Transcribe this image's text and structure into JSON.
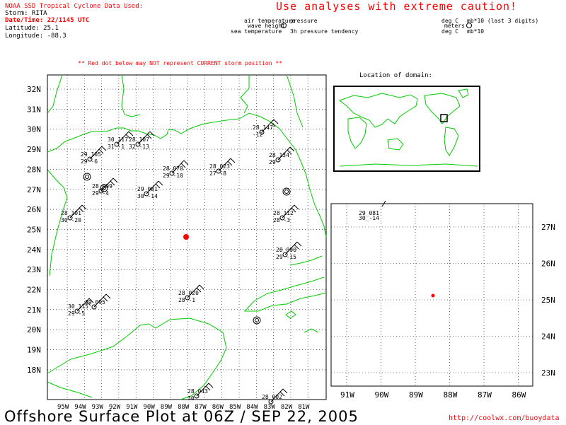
{
  "header": {
    "source_label": "NOAA SSD Tropical Cyclone Data Used:",
    "storm": "Storm: RITA",
    "datetime": "Date/Time: 22/1145 UTC",
    "latitude": "Latitude: 25.1",
    "longitude": "Longitude: -88.3",
    "caution": "Use analyses with extreme caution!",
    "warning": "** Red dot below may NOT represent CURRENT storm position **"
  },
  "legend": {
    "air_temperature": "air temperature",
    "pressure": "pressure",
    "wave_height": "wave height",
    "sea_temperature": "sea temperature",
    "pressure_tendency": "3h pressure tendency",
    "deg_c_1": "deg C",
    "mb_note": "mb*10 (last 3 digits)",
    "meters": "meters",
    "deg_c_2": "deg C",
    "mb_note_2": "mb*10"
  },
  "inset_title": "Location of domain:",
  "main_map": {
    "lat_labels": [
      "32N",
      "31N",
      "30N",
      "29N",
      "28N",
      "27N",
      "26N",
      "25N",
      "24N",
      "23N",
      "22N",
      "21N",
      "20N",
      "19N",
      "18N"
    ],
    "lon_labels": [
      "95W",
      "94W",
      "93W",
      "92W",
      "91W",
      "90W",
      "89W",
      "88W",
      "87W",
      "86W",
      "85W",
      "84W",
      "83W",
      "82W",
      "81W"
    ],
    "storm_marker_color": "#ff0000",
    "land_color": "#00cc00"
  },
  "zoom_map": {
    "lat_labels": [
      "27N",
      "26N",
      "25N",
      "24N",
      "23N"
    ],
    "lon_labels": [
      "91W",
      "90W",
      "89W",
      "88W",
      "87W",
      "86W"
    ],
    "station_top": "29_081",
    "station_bottom": "30_-14"
  },
  "stations": [
    {
      "t": "28",
      "p": "147",
      "s": "",
      "d": "-12"
    },
    {
      "t": "30",
      "p": "117",
      "s": "31",
      "d": "-1"
    },
    {
      "t": "29",
      "p": "105",
      "s": "29",
      "d": "-6"
    },
    {
      "t": "28",
      "p": "107",
      "s": "32",
      "d": "-13"
    },
    {
      "t": "28",
      "p": "134",
      "s": "29",
      "d": ""
    },
    {
      "t": "28",
      "p": "070",
      "s": "29",
      "d": "-10"
    },
    {
      "t": "28",
      "p": "023",
      "s": "27",
      "d": "-8"
    },
    {
      "t": "28",
      "p": "099",
      "s": "29",
      "d": "-4"
    },
    {
      "t": "29",
      "p": "081",
      "s": "30",
      "d": "-14"
    },
    {
      "t": "28",
      "p": "101",
      "s": "30",
      "d": "-20"
    },
    {
      "t": "28",
      "p": "112",
      "s": "28",
      "d": "-3"
    },
    {
      "t": "28",
      "p": "090",
      "s": "29",
      "d": "-15"
    },
    {
      "t": "28",
      "p": "020",
      "s": "28",
      "d": "-1"
    },
    {
      "t": "30",
      "p": "115",
      "s": "29",
      "d": "-5"
    },
    {
      "t": "29",
      "p": "095",
      "s": "",
      "d": ""
    },
    {
      "t": "28",
      "p": "043",
      "s": "30",
      "d": ""
    },
    {
      "t": "28",
      "p": "002",
      "s": "",
      "d": ""
    }
  ],
  "footer": {
    "title": "Offshore Surface Plot at 06Z / SEP 22, 2005",
    "url": "http://coolwx.com/buoydata"
  }
}
